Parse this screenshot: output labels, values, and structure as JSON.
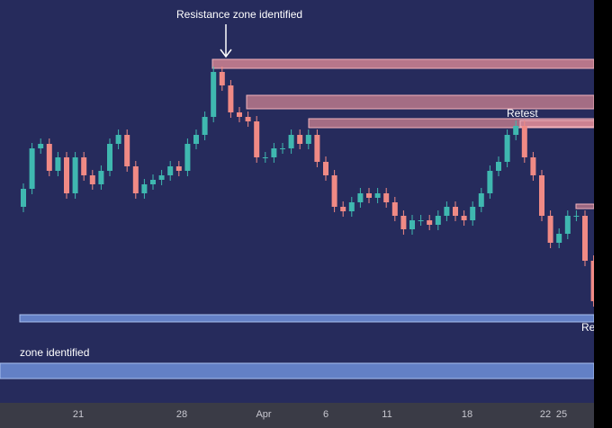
{
  "chart_data": {
    "type": "candlestick",
    "annotations": [
      "Resistance zone identified",
      "Retest",
      "Re",
      "zone identified"
    ],
    "x_labels": [
      "21",
      "28",
      "Apr",
      "6",
      "11",
      "18",
      "22",
      "25"
    ],
    "up_color": "#3fb8b0",
    "down_color": "#f08a85",
    "open": [
      170,
      190,
      235,
      240,
      210,
      225,
      185,
      225,
      205,
      195,
      210,
      240,
      250,
      215,
      185,
      195,
      200,
      205,
      215,
      210,
      240,
      250,
      270,
      320,
      305,
      275,
      270,
      265,
      225,
      225,
      235,
      235,
      250,
      240,
      250,
      220,
      205,
      170,
      165,
      175,
      185,
      180,
      185,
      175,
      160,
      145,
      155,
      155,
      150,
      160,
      170,
      160,
      155,
      170,
      185,
      210,
      220,
      250,
      260,
      225,
      205,
      160,
      130,
      140,
      160,
      160,
      110
    ],
    "high": [
      196,
      241,
      246,
      246,
      231,
      231,
      231,
      231,
      211,
      216,
      246,
      256,
      256,
      221,
      201,
      206,
      211,
      221,
      221,
      246,
      256,
      276,
      326,
      326,
      311,
      281,
      276,
      271,
      231,
      241,
      241,
      256,
      256,
      256,
      256,
      226,
      211,
      176,
      181,
      191,
      191,
      191,
      191,
      181,
      166,
      161,
      161,
      161,
      166,
      176,
      176,
      166,
      176,
      191,
      216,
      226,
      256,
      266,
      266,
      231,
      211,
      166,
      146,
      166,
      166,
      166,
      116
    ],
    "low": [
      164,
      184,
      229,
      204,
      204,
      179,
      179,
      199,
      189,
      189,
      204,
      234,
      209,
      179,
      179,
      189,
      194,
      199,
      204,
      204,
      234,
      244,
      264,
      299,
      269,
      264,
      259,
      219,
      219,
      219,
      229,
      229,
      234,
      234,
      214,
      199,
      164,
      159,
      159,
      169,
      174,
      174,
      169,
      154,
      139,
      139,
      149,
      144,
      144,
      154,
      154,
      149,
      149,
      164,
      179,
      204,
      214,
      244,
      219,
      199,
      154,
      124,
      124,
      134,
      154,
      104,
      59
    ],
    "close": [
      190,
      235,
      240,
      210,
      225,
      185,
      225,
      205,
      195,
      210,
      240,
      250,
      215,
      185,
      195,
      200,
      205,
      215,
      210,
      240,
      250,
      270,
      320,
      305,
      275,
      270,
      265,
      225,
      225,
      235,
      235,
      250,
      240,
      250,
      220,
      205,
      170,
      165,
      175,
      185,
      180,
      185,
      175,
      160,
      145,
      155,
      155,
      150,
      160,
      170,
      160,
      155,
      170,
      185,
      210,
      220,
      250,
      260,
      225,
      205,
      160,
      130,
      140,
      160,
      160,
      110,
      65
    ]
  }
}
